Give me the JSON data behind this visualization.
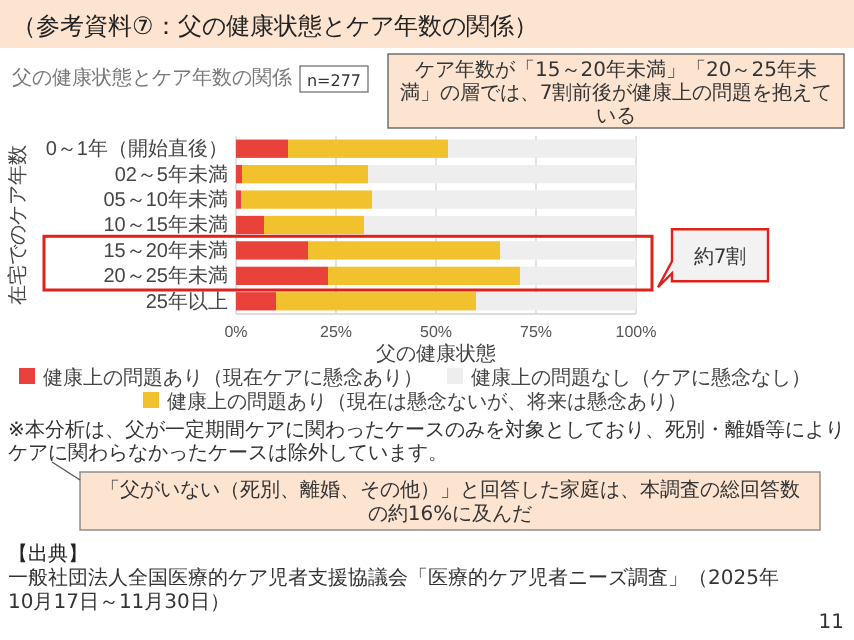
{
  "chart_data": {
    "type": "bar",
    "orientation": "horizontal",
    "stacked": true,
    "title": "（参考資料⑦：父の健康状態とケア年数の関係）",
    "subtitle": "父の健康状態とケア年数の関係",
    "xlabel": "父の健康状態",
    "ylabel": "在宅でのケア年数",
    "categories": [
      "0～1年（開始直後）",
      "02～5年未満",
      "05～10年未満",
      "10～15年未満",
      "15～20年未満",
      "20～25年未満",
      "25年以上"
    ],
    "series": [
      {
        "name": "健康上の問題あり（現在ケアに懸念あり）",
        "color": "#e8423a",
        "values": [
          13,
          1.5,
          1.3,
          7,
          18,
          23,
          10
        ]
      },
      {
        "name": "健康上の問題あり（現在は懸念ないが、将来は懸念あり）",
        "color": "#f2c12e",
        "values": [
          40,
          31.5,
          32.7,
          25,
          48,
          48,
          50
        ]
      },
      {
        "name": "健康上の問題なし（ケアに懸念なし）",
        "color": "#eeeeee",
        "values": [
          47,
          67,
          66,
          68,
          34,
          29,
          40
        ]
      }
    ],
    "xlim": [
      0,
      100
    ],
    "xticks": [
      {
        "value": 0,
        "label": "0%"
      },
      {
        "value": 25,
        "label": "25%"
      },
      {
        "value": 50,
        "label": "50%"
      },
      {
        "value": 75,
        "label": "75%"
      },
      {
        "value": 100,
        "label": "100%"
      }
    ],
    "grid": "x",
    "legend": "bottom",
    "annotations": [
      "n=277",
      "ケア年数が「15～20年未満」「20～25年未満」の層では、7割前後が健康上の問題を抱えている",
      "約7割",
      "※本分析は、父が一定期間ケアに関わったケースのみを対象としており、死別・離婚等によりケアに関わらなかったケースは除外しています。",
      "「父がいない（死別、離婚、その他）」と回答した家庭は、本調査の総回答数の約16%に及んだ",
      "【出典】",
      "一般社団法人全国医療的ケア児者支援協議会「医療的ケア児者ニーズ調査」（2025年10月17日～11月30日）",
      "11"
    ]
  }
}
